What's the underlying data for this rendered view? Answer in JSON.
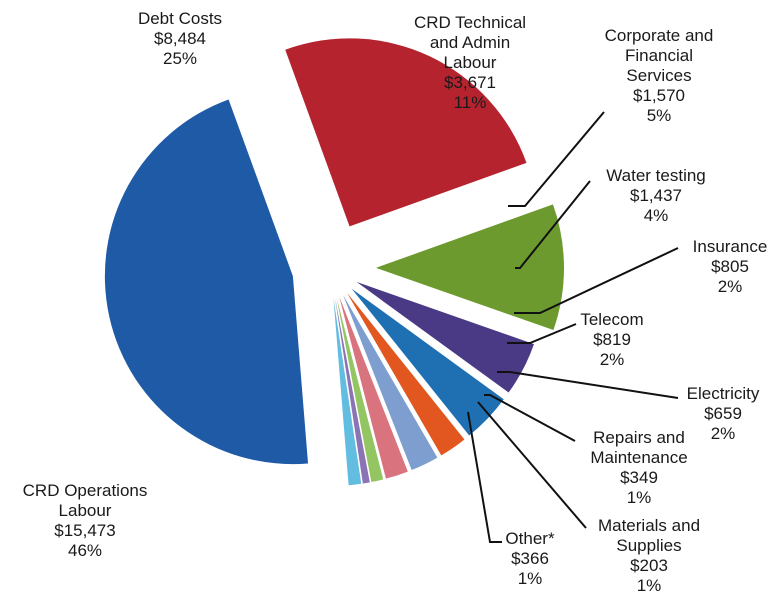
{
  "chart_data": {
    "type": "pie",
    "legend": "none",
    "slices": [
      {
        "name": "Debt Costs",
        "value": 8484,
        "value_label": "$8,484",
        "percent_label": "25%",
        "color": "#b5232f"
      },
      {
        "name": "CRD Technical and Admin Labour",
        "value": 3671,
        "value_label": "$3,671",
        "percent_label": "11%",
        "color": "#6c9a2e"
      },
      {
        "name": "Corporate and Financial Services",
        "value": 1570,
        "value_label": "$1,570",
        "percent_label": "5%",
        "color": "#4a3a86"
      },
      {
        "name": "Water testing",
        "value": 1437,
        "value_label": "$1,437",
        "percent_label": "4%",
        "color": "#1f6fb3"
      },
      {
        "name": "Insurance",
        "value": 805,
        "value_label": "$805",
        "percent_label": "2%",
        "color": "#e2571f"
      },
      {
        "name": "Telecom",
        "value": 819,
        "value_label": "$819",
        "percent_label": "2%",
        "color": "#7d9ecf"
      },
      {
        "name": "Electricity",
        "value": 659,
        "value_label": "$659",
        "percent_label": "2%",
        "color": "#d9737e"
      },
      {
        "name": "Repairs and Maintenance",
        "value": 349,
        "value_label": "$349",
        "percent_label": "1%",
        "color": "#93c563"
      },
      {
        "name": "Materials and Supplies",
        "value": 203,
        "value_label": "$203",
        "percent_label": "1%",
        "color": "#8b74b4"
      },
      {
        "name": "Other*",
        "value": 366,
        "value_label": "$366",
        "percent_label": "1%",
        "color": "#63bde0"
      },
      {
        "name": "CRD Operations Labour",
        "value": 15473,
        "value_label": "$15,473",
        "percent_label": "46%",
        "color": "#1f5aa6"
      }
    ]
  },
  "labels": {
    "debt": {
      "lines": [
        "Debt Costs",
        "$8,484",
        "25%"
      ]
    },
    "technical": {
      "lines": [
        "CRD Technical",
        "and Admin",
        "Labour",
        "$3,671",
        "11%"
      ]
    },
    "corporate": {
      "lines": [
        "Corporate and",
        "Financial",
        "Services",
        "$1,570",
        "5%"
      ]
    },
    "water": {
      "lines": [
        "Water testing",
        "$1,437",
        "4%"
      ]
    },
    "insurance": {
      "lines": [
        "Insurance",
        "$805",
        "2%"
      ]
    },
    "telecom": {
      "lines": [
        "Telecom",
        "$819",
        "2%"
      ]
    },
    "electricity": {
      "lines": [
        "Electricity",
        "$659",
        "2%"
      ]
    },
    "repairs": {
      "lines": [
        "Repairs and",
        "Maintenance",
        "$349",
        "1%"
      ]
    },
    "materials": {
      "lines": [
        "Materials and",
        "Supplies",
        "$203",
        "1%"
      ]
    },
    "other": {
      "lines": [
        "Other*",
        "$366",
        "1%"
      ]
    },
    "operations": {
      "lines": [
        "CRD Operations",
        "Labour",
        "$15,473",
        "46%"
      ]
    }
  }
}
